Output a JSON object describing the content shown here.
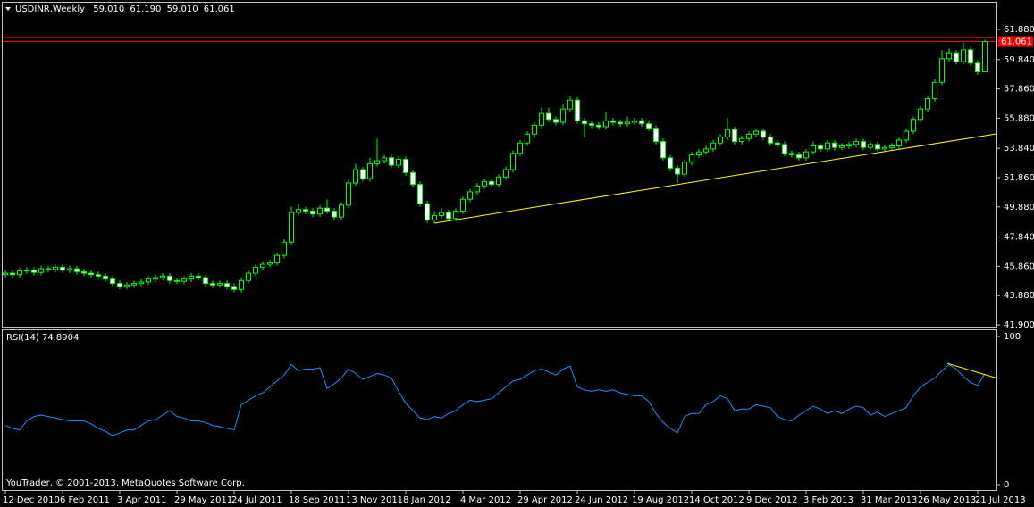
{
  "header": {
    "symbol": "USDINR,Weekly",
    "ohlc_text": [
      "59.010",
      "61.190",
      "59.010",
      "61.061"
    ]
  },
  "footer": "YouTrader, © 2001-2013, MetaQuotes Software Corp.",
  "chart_data": [
    {
      "type": "candlestick",
      "categories": [
        "12 Dec 2010",
        null,
        null,
        null,
        null,
        null,
        null,
        null,
        "6 Feb 2011",
        null,
        null,
        null,
        null,
        null,
        null,
        null,
        "3 Apr 2011",
        null,
        null,
        null,
        null,
        null,
        null,
        null,
        "29 May 2011",
        null,
        null,
        null,
        null,
        null,
        null,
        null,
        "24 Jul 2011",
        null,
        null,
        null,
        null,
        null,
        null,
        null,
        "18 Sep 2011",
        null,
        null,
        null,
        null,
        null,
        null,
        null,
        "13 Nov 2011",
        null,
        null,
        null,
        null,
        null,
        null,
        null,
        "8 Jan 2012",
        null,
        null,
        null,
        null,
        null,
        null,
        null,
        "4 Mar 2012",
        null,
        null,
        null,
        null,
        null,
        null,
        null,
        "29 Apr 2012",
        null,
        null,
        null,
        null,
        null,
        null,
        null,
        "24 Jun 2012",
        null,
        null,
        null,
        null,
        null,
        null,
        null,
        "19 Aug 2012",
        null,
        null,
        null,
        null,
        null,
        null,
        null,
        "14 Oct 2012",
        null,
        null,
        null,
        null,
        null,
        null,
        null,
        "9 Dec 2012",
        null,
        null,
        null,
        null,
        null,
        null,
        null,
        "3 Feb 2013",
        null,
        null,
        null,
        null,
        null,
        null,
        null,
        "31 Mar 2013",
        null,
        null,
        null,
        null,
        null,
        null,
        null,
        "26 May 2013",
        null,
        null,
        null,
        null,
        null,
        null,
        null,
        "21 Jul 2013",
        null
      ],
      "candles": [
        [
          45.3,
          45.6,
          45.1,
          45.4
        ],
        [
          45.4,
          45.6,
          45.1,
          45.3
        ],
        [
          45.3,
          45.75,
          45.1,
          45.55
        ],
        [
          45.55,
          45.8,
          45.35,
          45.6
        ],
        [
          45.6,
          45.8,
          45.25,
          45.45
        ],
        [
          45.45,
          45.9,
          45.25,
          45.7
        ],
        [
          45.7,
          45.9,
          45.45,
          45.65
        ],
        [
          45.65,
          46.0,
          45.45,
          45.8
        ],
        [
          45.8,
          46.0,
          45.4,
          45.6
        ],
        [
          45.6,
          45.9,
          45.4,
          45.7
        ],
        [
          45.7,
          45.9,
          45.3,
          45.5
        ],
        [
          45.5,
          45.7,
          45.2,
          45.4
        ],
        [
          45.4,
          45.6,
          45.1,
          45.3
        ],
        [
          45.3,
          45.5,
          45.0,
          45.2
        ],
        [
          45.2,
          45.4,
          44.8,
          45.0
        ],
        [
          45.0,
          45.2,
          44.5,
          44.7
        ],
        [
          44.7,
          44.9,
          44.3,
          44.5
        ],
        [
          44.5,
          44.8,
          44.3,
          44.6
        ],
        [
          44.6,
          44.9,
          44.4,
          44.7
        ],
        [
          44.7,
          45.0,
          44.5,
          44.8
        ],
        [
          44.8,
          45.2,
          44.6,
          45.0
        ],
        [
          45.0,
          45.3,
          44.8,
          45.1
        ],
        [
          45.1,
          45.4,
          44.9,
          45.2
        ],
        [
          45.2,
          45.4,
          44.7,
          44.9
        ],
        [
          44.9,
          45.1,
          44.65,
          44.85
        ],
        [
          44.85,
          45.2,
          44.65,
          45.0
        ],
        [
          45.0,
          45.4,
          44.8,
          45.2
        ],
        [
          45.2,
          45.4,
          44.9,
          45.1
        ],
        [
          45.1,
          45.3,
          44.5,
          44.7
        ],
        [
          44.7,
          44.9,
          44.4,
          44.6
        ],
        [
          44.6,
          44.9,
          44.4,
          44.7
        ],
        [
          44.7,
          44.9,
          44.3,
          44.5
        ],
        [
          44.5,
          44.7,
          44.1,
          44.3
        ],
        [
          44.3,
          45.1,
          44.1,
          44.9
        ],
        [
          44.9,
          45.6,
          44.7,
          45.4
        ],
        [
          45.4,
          46.0,
          45.2,
          45.8
        ],
        [
          45.8,
          46.2,
          45.6,
          46.0
        ],
        [
          46.0,
          46.3,
          45.8,
          46.1
        ],
        [
          46.1,
          46.8,
          45.9,
          46.6
        ],
        [
          46.6,
          47.7,
          46.4,
          47.5
        ],
        [
          47.5,
          49.9,
          47.3,
          49.5
        ],
        [
          49.5,
          50.1,
          49.3,
          49.7
        ],
        [
          49.7,
          49.9,
          49.4,
          49.6
        ],
        [
          49.6,
          49.8,
          49.2,
          49.4
        ],
        [
          49.4,
          50.0,
          49.2,
          49.8
        ],
        [
          49.8,
          50.4,
          49.4,
          49.6
        ],
        [
          49.6,
          49.8,
          49.0,
          49.2
        ],
        [
          49.2,
          50.2,
          49.0,
          50.0
        ],
        [
          50.0,
          51.7,
          49.8,
          51.5
        ],
        [
          51.5,
          52.8,
          51.3,
          52.4
        ],
        [
          52.4,
          52.6,
          51.6,
          51.8
        ],
        [
          51.8,
          53.2,
          51.6,
          52.8
        ],
        [
          52.8,
          54.5,
          52.6,
          53.0
        ],
        [
          53.0,
          53.4,
          52.8,
          53.2
        ],
        [
          53.2,
          53.4,
          52.5,
          52.7
        ],
        [
          52.7,
          53.3,
          52.5,
          53.1
        ],
        [
          53.1,
          53.3,
          52.0,
          52.2
        ],
        [
          52.2,
          52.4,
          51.2,
          51.4
        ],
        [
          51.4,
          51.6,
          49.9,
          50.1
        ],
        [
          50.1,
          50.3,
          48.8,
          49.0
        ],
        [
          49.0,
          49.6,
          48.8,
          49.3
        ],
        [
          49.3,
          49.8,
          49.1,
          49.5
        ],
        [
          49.5,
          49.7,
          48.9,
          49.1
        ],
        [
          49.1,
          49.8,
          48.9,
          49.6
        ],
        [
          49.6,
          50.6,
          49.4,
          50.4
        ],
        [
          50.4,
          51.1,
          50.2,
          50.9
        ],
        [
          50.9,
          51.5,
          50.7,
          51.3
        ],
        [
          51.3,
          51.8,
          51.1,
          51.6
        ],
        [
          51.6,
          51.8,
          51.2,
          51.4
        ],
        [
          51.4,
          52.1,
          51.2,
          51.9
        ],
        [
          51.9,
          52.6,
          51.7,
          52.4
        ],
        [
          52.4,
          53.7,
          52.2,
          53.5
        ],
        [
          53.5,
          54.4,
          53.3,
          54.2
        ],
        [
          54.2,
          55.0,
          54.0,
          54.8
        ],
        [
          54.8,
          55.6,
          54.6,
          55.4
        ],
        [
          55.4,
          56.6,
          55.2,
          56.2
        ],
        [
          56.2,
          56.6,
          55.6,
          55.8
        ],
        [
          55.8,
          56.0,
          55.4,
          55.6
        ],
        [
          55.6,
          56.8,
          55.4,
          56.5
        ],
        [
          56.5,
          57.4,
          56.3,
          57.1
        ],
        [
          57.1,
          57.3,
          55.5,
          55.7
        ],
        [
          55.7,
          55.9,
          54.6,
          55.5
        ],
        [
          55.5,
          55.7,
          55.2,
          55.4
        ],
        [
          55.4,
          55.6,
          55.1,
          55.3
        ],
        [
          55.3,
          56.3,
          55.1,
          55.7
        ],
        [
          55.7,
          55.9,
          55.4,
          55.6
        ],
        [
          55.6,
          55.8,
          55.3,
          55.5
        ],
        [
          55.5,
          56.0,
          55.3,
          55.6
        ],
        [
          55.6,
          55.9,
          55.4,
          55.7
        ],
        [
          55.7,
          55.9,
          55.3,
          55.5
        ],
        [
          55.5,
          55.7,
          55.0,
          55.2
        ],
        [
          55.2,
          55.4,
          54.1,
          54.3
        ],
        [
          54.3,
          54.5,
          53.0,
          53.2
        ],
        [
          53.2,
          53.4,
          52.3,
          52.5
        ],
        [
          52.5,
          52.7,
          51.5,
          52.1
        ],
        [
          52.1,
          53.1,
          51.9,
          52.9
        ],
        [
          52.9,
          53.6,
          52.7,
          53.4
        ],
        [
          53.4,
          53.8,
          53.2,
          53.6
        ],
        [
          53.6,
          54.0,
          53.4,
          53.8
        ],
        [
          53.8,
          54.4,
          53.6,
          54.2
        ],
        [
          54.2,
          54.8,
          54.0,
          54.6
        ],
        [
          54.6,
          55.9,
          54.4,
          55.1
        ],
        [
          55.1,
          55.3,
          54.1,
          54.3
        ],
        [
          54.3,
          54.7,
          54.1,
          54.5
        ],
        [
          54.5,
          55.0,
          54.3,
          54.8
        ],
        [
          54.8,
          55.2,
          54.6,
          55.0
        ],
        [
          55.0,
          55.2,
          54.4,
          54.6
        ],
        [
          54.6,
          54.8,
          54.0,
          54.2
        ],
        [
          54.2,
          54.4,
          53.9,
          54.1
        ],
        [
          54.1,
          54.3,
          53.3,
          53.5
        ],
        [
          53.5,
          53.7,
          53.2,
          53.4
        ],
        [
          53.4,
          53.6,
          53.0,
          53.2
        ],
        [
          53.2,
          53.8,
          53.0,
          53.6
        ],
        [
          53.6,
          54.3,
          53.4,
          54.0
        ],
        [
          54.0,
          54.2,
          53.6,
          53.8
        ],
        [
          53.8,
          54.4,
          53.6,
          54.2
        ],
        [
          54.2,
          54.4,
          53.7,
          53.9
        ],
        [
          53.9,
          54.2,
          53.7,
          54.0
        ],
        [
          54.0,
          54.3,
          53.8,
          54.1
        ],
        [
          54.1,
          54.5,
          53.9,
          54.3
        ],
        [
          54.3,
          54.5,
          53.7,
          53.9
        ],
        [
          53.9,
          54.3,
          53.7,
          54.1
        ],
        [
          54.1,
          54.3,
          53.6,
          53.8
        ],
        [
          53.8,
          54.1,
          53.6,
          53.9
        ],
        [
          53.9,
          54.2,
          53.7,
          54.0
        ],
        [
          54.0,
          54.6,
          53.8,
          54.4
        ],
        [
          54.4,
          55.2,
          54.2,
          55.0
        ],
        [
          55.0,
          56.0,
          54.8,
          55.8
        ],
        [
          55.8,
          56.7,
          55.6,
          56.5
        ],
        [
          56.5,
          57.4,
          56.3,
          57.2
        ],
        [
          57.2,
          58.5,
          57.0,
          58.3
        ],
        [
          58.3,
          60.5,
          58.1,
          59.9
        ],
        [
          59.9,
          60.6,
          59.7,
          60.3
        ],
        [
          60.3,
          60.5,
          59.5,
          59.7
        ],
        [
          59.7,
          61.0,
          59.5,
          60.5
        ],
        [
          60.5,
          60.7,
          59.4,
          59.6
        ],
        [
          59.6,
          59.8,
          58.8,
          59.01
        ],
        [
          59.01,
          61.19,
          59.01,
          61.061
        ]
      ],
      "color": "#00ff00",
      "up_fill": "#000000",
      "down_fill": "#ffffff",
      "ylim": [
        41.78,
        63.63
      ],
      "yticks": [
        {
          "value": 61.88,
          "label": "61.880"
        },
        {
          "value": 59.84,
          "label": "59.840"
        },
        {
          "value": 57.86,
          "label": "57.860"
        },
        {
          "value": 55.88,
          "label": "55.880"
        },
        {
          "value": 53.84,
          "label": "53.840"
        },
        {
          "value": 51.86,
          "label": "51.860"
        },
        {
          "value": 49.88,
          "label": "49.880"
        },
        {
          "value": 47.84,
          "label": "47.840"
        },
        {
          "value": 45.86,
          "label": "45.860"
        },
        {
          "value": 43.88,
          "label": "43.880"
        },
        {
          "value": 41.9,
          "label": "41.900"
        }
      ],
      "price_lines": [
        61.33,
        61.061
      ],
      "price_line_color": "#ff0000",
      "price_label": {
        "value": 61.061,
        "label": "61.061"
      },
      "trendline": {
        "x": [
          60,
          138.6
        ],
        "y": [
          48.78,
          54.82
        ],
        "color": "#ffff00"
      }
    },
    {
      "type": "line",
      "title": "RSI(14) 74.8904",
      "values": [
        40,
        38,
        37,
        43,
        46,
        47,
        46,
        45,
        44,
        43,
        43,
        43,
        41,
        38,
        36,
        33,
        35,
        37,
        37,
        40,
        43,
        44,
        47,
        50,
        46,
        45,
        43,
        43,
        42,
        40,
        39,
        38,
        37,
        54,
        57,
        60,
        62,
        66,
        70,
        74,
        81,
        77,
        78,
        78,
        79,
        65,
        68,
        72,
        78,
        75,
        71,
        73,
        75,
        74,
        72,
        63,
        55,
        50,
        45,
        44,
        46,
        45,
        48,
        50,
        54,
        57,
        56,
        57,
        58,
        62,
        66,
        70,
        71,
        74,
        77,
        78,
        76,
        74,
        78,
        80,
        66,
        64,
        63,
        64,
        63,
        64,
        62,
        61,
        60,
        60,
        56,
        48,
        42,
        38,
        35,
        46,
        48,
        48,
        54,
        56,
        60,
        58,
        50,
        51,
        51,
        54,
        53,
        52,
        46,
        44,
        43,
        47,
        50,
        53,
        51,
        48,
        50,
        48,
        51,
        53,
        52,
        47,
        49,
        46,
        48,
        50,
        52,
        60,
        66,
        69,
        72,
        77,
        81,
        78,
        73,
        69,
        67,
        74.89
      ],
      "color": "#1e90ff",
      "ylim": [
        0,
        100
      ],
      "yticks": [
        100,
        0
      ],
      "trendline": {
        "x": [
          131.75,
          138.6
        ],
        "y": [
          81.9,
          72
        ],
        "color": "#ffff00"
      }
    }
  ]
}
